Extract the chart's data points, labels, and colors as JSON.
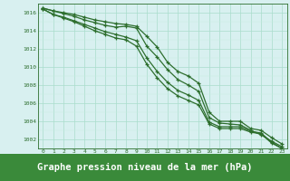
{
  "x": [
    0,
    1,
    2,
    3,
    4,
    5,
    6,
    7,
    8,
    9,
    10,
    11,
    12,
    13,
    14,
    15,
    16,
    17,
    18,
    19,
    20,
    21,
    22,
    23
  ],
  "line1": [
    1016.5,
    1016.2,
    1016.0,
    1015.8,
    1015.5,
    1015.2,
    1015.0,
    1014.8,
    1014.7,
    1014.5,
    1013.4,
    1012.2,
    1010.5,
    1009.5,
    1009.0,
    1008.2,
    1005.0,
    1004.0,
    1004.0,
    1004.0,
    1003.2,
    1003.0,
    1002.2,
    1001.5
  ],
  "line2": [
    1016.5,
    1016.2,
    1015.9,
    1015.6,
    1015.2,
    1014.9,
    1014.6,
    1014.4,
    1014.5,
    1014.3,
    1012.3,
    1011.1,
    1009.7,
    1008.6,
    1008.0,
    1007.3,
    1004.4,
    1003.8,
    1003.7,
    1003.6,
    1003.0,
    1002.5,
    1001.8,
    1001.2
  ],
  "line3": [
    1016.4,
    1015.8,
    1015.5,
    1015.1,
    1014.7,
    1014.3,
    1013.9,
    1013.6,
    1013.3,
    1012.9,
    1011.0,
    1009.5,
    1008.3,
    1007.4,
    1006.9,
    1006.3,
    1003.9,
    1003.4,
    1003.4,
    1003.4,
    1002.9,
    1002.7,
    1001.7,
    1001.0
  ],
  "line4": [
    1016.4,
    1015.8,
    1015.4,
    1015.0,
    1014.5,
    1014.0,
    1013.6,
    1013.2,
    1013.0,
    1012.3,
    1010.3,
    1008.8,
    1007.6,
    1006.8,
    1006.3,
    1005.8,
    1003.7,
    1003.2,
    1003.2,
    1003.2,
    1002.8,
    1002.6,
    1001.6,
    1001.0
  ],
  "bg_color": "#d8f0f0",
  "line_color": "#2d6e2d",
  "grid_color_major": "#aaddcc",
  "grid_color_minor": "#c8ece0",
  "ylim": [
    1001,
    1017
  ],
  "yticks": [
    1002,
    1004,
    1006,
    1008,
    1010,
    1012,
    1014,
    1016
  ],
  "xlabel": "Graphe pression niveau de la mer (hPa)",
  "marker": "+",
  "markersize": 3,
  "linewidth": 0.9,
  "xlabel_bg": "#3a8a3a",
  "xlabel_fontsize": 7.5
}
